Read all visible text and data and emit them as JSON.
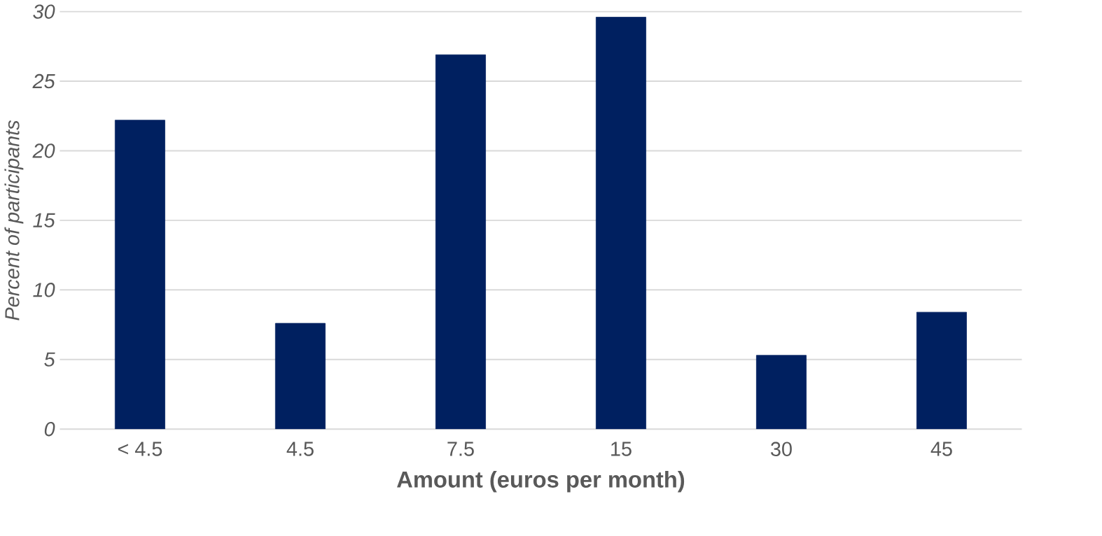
{
  "chart_data": {
    "type": "bar",
    "xlabel": "Amount (euros per month)",
    "ylabel": "Percent of participants",
    "categories": [
      "< 4.5",
      "4.5",
      "7.5",
      "15",
      "30",
      "45"
    ],
    "values": [
      22.2,
      7.6,
      26.9,
      29.6,
      5.3,
      8.4
    ],
    "color": "#002060",
    "ylim": [
      0,
      30
    ],
    "yticks": [
      0,
      5,
      10,
      15,
      20,
      25,
      30
    ],
    "grid": "y"
  }
}
